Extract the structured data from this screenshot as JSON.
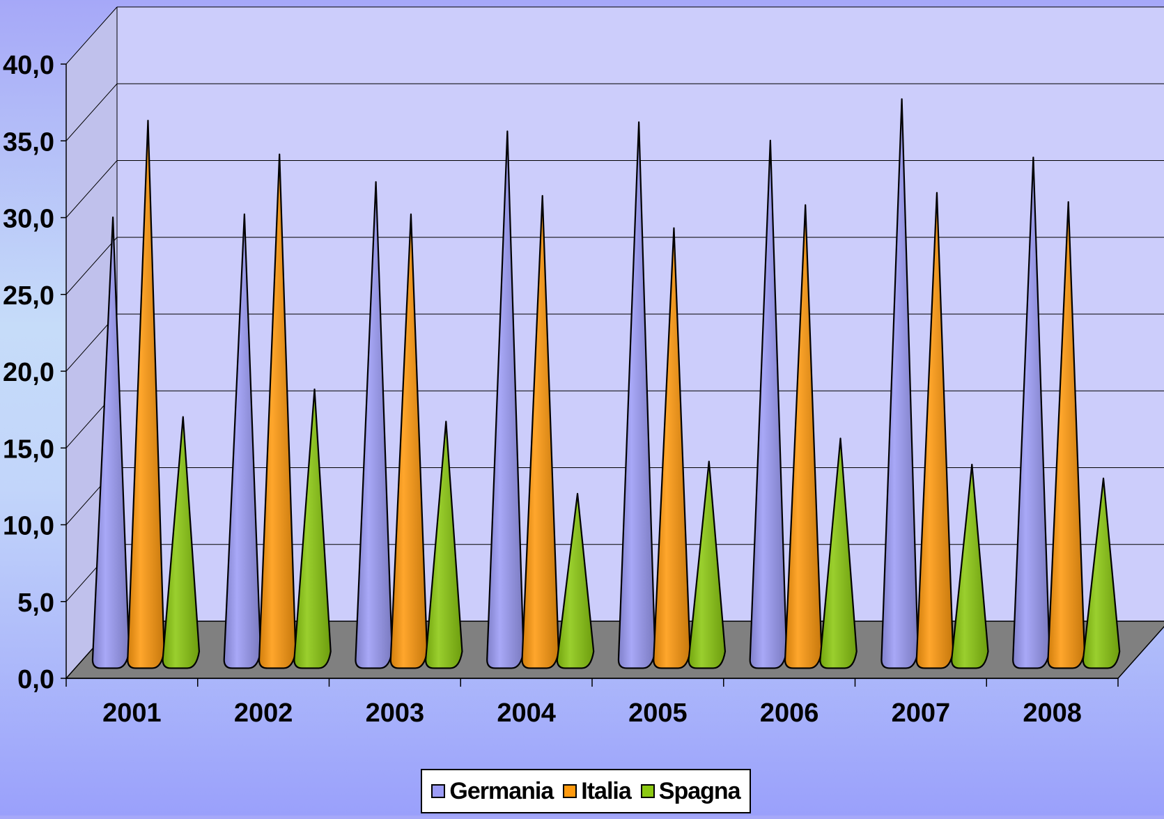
{
  "chart_data": {
    "type": "bar",
    "title": "",
    "xlabel": "",
    "ylabel": "",
    "categories": [
      "2001",
      "2002",
      "2003",
      "2004",
      "2005",
      "2006",
      "2007",
      "2008"
    ],
    "series": [
      {
        "name": "Germania",
        "color": "#9c9cf6",
        "values": [
          29.0,
          29.2,
          31.3,
          34.6,
          35.2,
          34.0,
          36.7,
          32.9
        ]
      },
      {
        "name": "Italia",
        "color": "#ff9a0f",
        "values": [
          35.3,
          33.1,
          29.2,
          30.4,
          28.3,
          29.8,
          30.6,
          30.0
        ]
      },
      {
        "name": "Spagna",
        "color": "#8cc912",
        "values": [
          16.0,
          17.8,
          15.7,
          11.0,
          13.1,
          14.6,
          12.9,
          12.0
        ]
      }
    ],
    "ylim": [
      0,
      40
    ],
    "y_ticks": [
      "0,0",
      "5,0",
      "10,0",
      "15,0",
      "20,0",
      "25,0",
      "30,0",
      "35,0",
      "40,0"
    ],
    "grid": true,
    "legend_position": "bottom",
    "style": "3d cones",
    "colors": {
      "wall": "#cccdfb",
      "floor": "#808080",
      "gridline": "#000000"
    }
  },
  "legend": {
    "items": [
      {
        "label": "Germania",
        "color": "#9c9cf6"
      },
      {
        "label": "Italia",
        "color": "#ff9a0f"
      },
      {
        "label": "Spagna",
        "color": "#8cc912"
      }
    ]
  }
}
